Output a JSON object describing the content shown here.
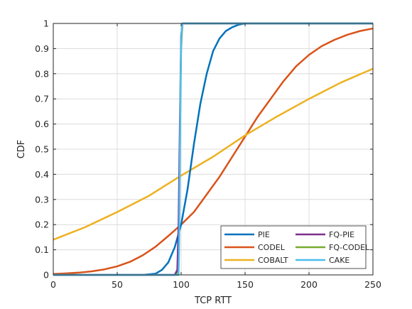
{
  "chart_data": {
    "type": "line",
    "title": "",
    "xlabel": "TCP RTT",
    "ylabel": "CDF",
    "xlim": [
      0,
      250
    ],
    "ylim": [
      0,
      1
    ],
    "xticks": [
      0,
      50,
      100,
      150,
      200,
      250
    ],
    "yticks": [
      0,
      0.1,
      0.2,
      0.3,
      0.4,
      0.5,
      0.6,
      0.7,
      0.8,
      0.9,
      1
    ],
    "xtick_labels": [
      "0",
      "50",
      "100",
      "150",
      "200",
      "250"
    ],
    "ytick_labels": [
      "0",
      "0.1",
      "0.2",
      "0.3",
      "0.4",
      "0.5",
      "0.6",
      "0.7",
      "0.8",
      "0.9",
      "1"
    ],
    "grid": true,
    "legend_position": "bottom-right",
    "series": [
      {
        "name": "PIE",
        "color": "#0072BD",
        "x": [
          0,
          70,
          80,
          85,
          90,
          95,
          100,
          105,
          110,
          115,
          120,
          125,
          130,
          135,
          140,
          145,
          150,
          250
        ],
        "y": [
          0,
          0,
          0.005,
          0.02,
          0.05,
          0.11,
          0.2,
          0.34,
          0.52,
          0.68,
          0.8,
          0.89,
          0.94,
          0.97,
          0.985,
          0.995,
          1,
          1
        ]
      },
      {
        "name": "CODEL",
        "color": "#D95319",
        "x": [
          0,
          10,
          20,
          30,
          40,
          50,
          60,
          70,
          80,
          90,
          100,
          110,
          120,
          130,
          140,
          150,
          160,
          170,
          180,
          190,
          200,
          210,
          220,
          230,
          240,
          250
        ],
        "y": [
          0.004,
          0.006,
          0.009,
          0.014,
          0.022,
          0.034,
          0.052,
          0.078,
          0.112,
          0.155,
          0.2,
          0.25,
          0.32,
          0.39,
          0.47,
          0.55,
          0.63,
          0.7,
          0.77,
          0.83,
          0.875,
          0.91,
          0.935,
          0.955,
          0.97,
          0.98
        ]
      },
      {
        "name": "COBALT",
        "color": "#EDB120",
        "x": [
          0,
          25,
          50,
          75,
          100,
          125,
          150,
          175,
          200,
          225,
          250
        ],
        "y": [
          0.14,
          0.19,
          0.25,
          0.315,
          0.395,
          0.47,
          0.555,
          0.63,
          0.7,
          0.765,
          0.82
        ]
      },
      {
        "name": "FQ-PIE",
        "color": "#7E2F8E",
        "x": [
          0,
          95,
          97,
          98,
          99,
          100,
          101,
          250
        ],
        "y": [
          0,
          0,
          0.02,
          0.2,
          0.6,
          0.95,
          1,
          1
        ]
      },
      {
        "name": "FQ-CODEL",
        "color": "#77AC30",
        "x": [
          0,
          97,
          98,
          99,
          100,
          101,
          250
        ],
        "y": [
          0,
          0,
          0.1,
          0.5,
          0.9,
          1,
          1
        ]
      },
      {
        "name": "CAKE",
        "color": "#4DBEEE",
        "x": [
          0,
          98,
          98.5,
          99,
          99.5,
          100,
          100.5,
          101,
          250
        ],
        "y": [
          0,
          0,
          0.15,
          0.45,
          0.75,
          0.92,
          0.98,
          1,
          1
        ]
      }
    ]
  }
}
